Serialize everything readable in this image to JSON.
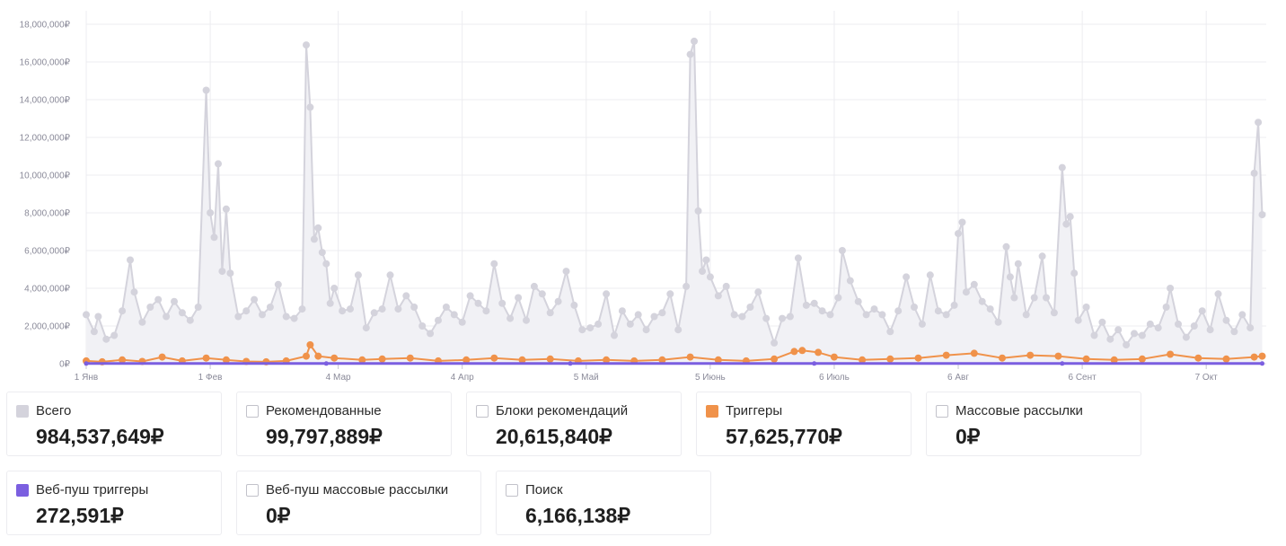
{
  "chart_data": {
    "type": "line",
    "currency": "₽",
    "ylim": [
      0,
      18000000
    ],
    "yticks": [
      0,
      2000000,
      4000000,
      6000000,
      8000000,
      10000000,
      12000000,
      14000000,
      16000000,
      18000000
    ],
    "ytick_labels": [
      "0₽",
      "2,000,000₽",
      "4,000,000₽",
      "6,000,000₽",
      "8,000,000₽",
      "10,000,000₽",
      "12,000,000₽",
      "14,000,000₽",
      "16,000,000₽",
      "18,000,000₽"
    ],
    "x_start": "2020-01-01",
    "x_end": "2020-10-22",
    "xticks": [
      {
        "date": "2020-01-01",
        "label": "1 Янв"
      },
      {
        "date": "2020-02-01",
        "label": "1 Фев"
      },
      {
        "date": "2020-03-04",
        "label": "4 Мар"
      },
      {
        "date": "2020-04-04",
        "label": "4 Апр"
      },
      {
        "date": "2020-05-05",
        "label": "5 Май"
      },
      {
        "date": "2020-06-05",
        "label": "5 Июнь"
      },
      {
        "date": "2020-07-06",
        "label": "6 Июль"
      },
      {
        "date": "2020-08-06",
        "label": "6 Авг"
      },
      {
        "date": "2020-09-06",
        "label": "6 Сент"
      },
      {
        "date": "2020-10-07",
        "label": "7 Окт"
      }
    ],
    "grid": true,
    "series": [
      {
        "name": "Всего",
        "color": "#d4d3dc",
        "fill": "#f1f1f5",
        "values_sampled": [
          [
            "2020-01-01",
            2600000
          ],
          [
            "2020-01-03",
            1700000
          ],
          [
            "2020-01-04",
            2500000
          ],
          [
            "2020-01-06",
            1300000
          ],
          [
            "2020-01-08",
            1500000
          ],
          [
            "2020-01-10",
            2800000
          ],
          [
            "2020-01-12",
            5500000
          ],
          [
            "2020-01-13",
            3800000
          ],
          [
            "2020-01-15",
            2200000
          ],
          [
            "2020-01-17",
            3000000
          ],
          [
            "2020-01-19",
            3400000
          ],
          [
            "2020-01-21",
            2500000
          ],
          [
            "2020-01-23",
            3300000
          ],
          [
            "2020-01-25",
            2700000
          ],
          [
            "2020-01-27",
            2300000
          ],
          [
            "2020-01-29",
            3000000
          ],
          [
            "2020-01-31",
            14500000
          ],
          [
            "2020-02-01",
            8000000
          ],
          [
            "2020-02-02",
            6700000
          ],
          [
            "2020-02-03",
            10600000
          ],
          [
            "2020-02-04",
            4900000
          ],
          [
            "2020-02-05",
            8200000
          ],
          [
            "2020-02-06",
            4800000
          ],
          [
            "2020-02-08",
            2500000
          ],
          [
            "2020-02-10",
            2800000
          ],
          [
            "2020-02-12",
            3400000
          ],
          [
            "2020-02-14",
            2600000
          ],
          [
            "2020-02-16",
            3000000
          ],
          [
            "2020-02-18",
            4200000
          ],
          [
            "2020-02-20",
            2500000
          ],
          [
            "2020-02-22",
            2400000
          ],
          [
            "2020-02-24",
            2900000
          ],
          [
            "2020-02-25",
            16900000
          ],
          [
            "2020-02-26",
            13600000
          ],
          [
            "2020-02-27",
            6600000
          ],
          [
            "2020-02-28",
            7200000
          ],
          [
            "2020-02-29",
            5900000
          ],
          [
            "2020-03-01",
            5300000
          ],
          [
            "2020-03-02",
            3200000
          ],
          [
            "2020-03-03",
            4000000
          ],
          [
            "2020-03-05",
            2800000
          ],
          [
            "2020-03-07",
            2900000
          ],
          [
            "2020-03-09",
            4700000
          ],
          [
            "2020-03-11",
            1900000
          ],
          [
            "2020-03-13",
            2700000
          ],
          [
            "2020-03-15",
            2900000
          ],
          [
            "2020-03-17",
            4700000
          ],
          [
            "2020-03-19",
            2900000
          ],
          [
            "2020-03-21",
            3600000
          ],
          [
            "2020-03-23",
            3000000
          ],
          [
            "2020-03-25",
            2000000
          ],
          [
            "2020-03-27",
            1600000
          ],
          [
            "2020-03-29",
            2300000
          ],
          [
            "2020-03-31",
            3000000
          ],
          [
            "2020-04-02",
            2600000
          ],
          [
            "2020-04-04",
            2200000
          ],
          [
            "2020-04-06",
            3600000
          ],
          [
            "2020-04-08",
            3200000
          ],
          [
            "2020-04-10",
            2800000
          ],
          [
            "2020-04-12",
            5300000
          ],
          [
            "2020-04-14",
            3200000
          ],
          [
            "2020-04-16",
            2400000
          ],
          [
            "2020-04-18",
            3500000
          ],
          [
            "2020-04-20",
            2300000
          ],
          [
            "2020-04-22",
            4100000
          ],
          [
            "2020-04-24",
            3700000
          ],
          [
            "2020-04-26",
            2700000
          ],
          [
            "2020-04-28",
            3300000
          ],
          [
            "2020-04-30",
            4900000
          ],
          [
            "2020-05-02",
            3100000
          ],
          [
            "2020-05-04",
            1800000
          ],
          [
            "2020-05-06",
            1900000
          ],
          [
            "2020-05-08",
            2100000
          ],
          [
            "2020-05-10",
            3700000
          ],
          [
            "2020-05-12",
            1500000
          ],
          [
            "2020-05-14",
            2800000
          ],
          [
            "2020-05-16",
            2100000
          ],
          [
            "2020-05-18",
            2600000
          ],
          [
            "2020-05-20",
            1800000
          ],
          [
            "2020-05-22",
            2500000
          ],
          [
            "2020-05-24",
            2700000
          ],
          [
            "2020-05-26",
            3700000
          ],
          [
            "2020-05-28",
            1800000
          ],
          [
            "2020-05-30",
            4100000
          ],
          [
            "2020-05-31",
            16400000
          ],
          [
            "2020-06-01",
            17100000
          ],
          [
            "2020-06-02",
            8100000
          ],
          [
            "2020-06-03",
            4900000
          ],
          [
            "2020-06-04",
            5500000
          ],
          [
            "2020-06-05",
            4600000
          ],
          [
            "2020-06-07",
            3600000
          ],
          [
            "2020-06-09",
            4100000
          ],
          [
            "2020-06-11",
            2600000
          ],
          [
            "2020-06-13",
            2500000
          ],
          [
            "2020-06-15",
            3000000
          ],
          [
            "2020-06-17",
            3800000
          ],
          [
            "2020-06-19",
            2400000
          ],
          [
            "2020-06-21",
            1100000
          ],
          [
            "2020-06-23",
            2400000
          ],
          [
            "2020-06-25",
            2500000
          ],
          [
            "2020-06-27",
            5600000
          ],
          [
            "2020-06-29",
            3100000
          ],
          [
            "2020-07-01",
            3200000
          ],
          [
            "2020-07-03",
            2800000
          ],
          [
            "2020-07-05",
            2600000
          ],
          [
            "2020-07-07",
            3500000
          ],
          [
            "2020-07-08",
            6000000
          ],
          [
            "2020-07-10",
            4400000
          ],
          [
            "2020-07-12",
            3300000
          ],
          [
            "2020-07-14",
            2600000
          ],
          [
            "2020-07-16",
            2900000
          ],
          [
            "2020-07-18",
            2600000
          ],
          [
            "2020-07-20",
            1700000
          ],
          [
            "2020-07-22",
            2800000
          ],
          [
            "2020-07-24",
            4600000
          ],
          [
            "2020-07-26",
            3000000
          ],
          [
            "2020-07-28",
            2100000
          ],
          [
            "2020-07-30",
            4700000
          ],
          [
            "2020-08-01",
            2800000
          ],
          [
            "2020-08-03",
            2600000
          ],
          [
            "2020-08-05",
            3100000
          ],
          [
            "2020-08-06",
            6900000
          ],
          [
            "2020-08-07",
            7500000
          ],
          [
            "2020-08-08",
            3800000
          ],
          [
            "2020-08-10",
            4200000
          ],
          [
            "2020-08-12",
            3300000
          ],
          [
            "2020-08-14",
            2900000
          ],
          [
            "2020-08-16",
            2200000
          ],
          [
            "2020-08-18",
            6200000
          ],
          [
            "2020-08-19",
            4600000
          ],
          [
            "2020-08-20",
            3500000
          ],
          [
            "2020-08-21",
            5300000
          ],
          [
            "2020-08-23",
            2600000
          ],
          [
            "2020-08-25",
            3500000
          ],
          [
            "2020-08-27",
            5700000
          ],
          [
            "2020-08-28",
            3500000
          ],
          [
            "2020-08-30",
            2700000
          ],
          [
            "2020-09-01",
            10400000
          ],
          [
            "2020-09-02",
            7400000
          ],
          [
            "2020-09-03",
            7800000
          ],
          [
            "2020-09-04",
            4800000
          ],
          [
            "2020-09-05",
            2300000
          ],
          [
            "2020-09-07",
            3000000
          ],
          [
            "2020-09-09",
            1500000
          ],
          [
            "2020-09-11",
            2200000
          ],
          [
            "2020-09-13",
            1300000
          ],
          [
            "2020-09-15",
            1800000
          ],
          [
            "2020-09-17",
            1000000
          ],
          [
            "2020-09-19",
            1600000
          ],
          [
            "2020-09-21",
            1500000
          ],
          [
            "2020-09-23",
            2100000
          ],
          [
            "2020-09-25",
            1900000
          ],
          [
            "2020-09-27",
            3000000
          ],
          [
            "2020-09-28",
            4000000
          ],
          [
            "2020-09-30",
            2100000
          ],
          [
            "2020-10-02",
            1400000
          ],
          [
            "2020-10-04",
            2000000
          ],
          [
            "2020-10-06",
            2800000
          ],
          [
            "2020-10-08",
            1800000
          ],
          [
            "2020-10-10",
            3700000
          ],
          [
            "2020-10-12",
            2300000
          ],
          [
            "2020-10-14",
            1700000
          ],
          [
            "2020-10-16",
            2600000
          ],
          [
            "2020-10-18",
            1900000
          ],
          [
            "2020-10-19",
            10100000
          ],
          [
            "2020-10-20",
            12800000
          ],
          [
            "2020-10-21",
            7900000
          ]
        ]
      },
      {
        "name": "Триггеры",
        "color": "#f0924a",
        "values_sampled": [
          [
            "2020-01-01",
            150000
          ],
          [
            "2020-01-05",
            100000
          ],
          [
            "2020-01-10",
            200000
          ],
          [
            "2020-01-15",
            120000
          ],
          [
            "2020-01-20",
            350000
          ],
          [
            "2020-01-25",
            150000
          ],
          [
            "2020-01-31",
            300000
          ],
          [
            "2020-02-05",
            200000
          ],
          [
            "2020-02-10",
            120000
          ],
          [
            "2020-02-15",
            100000
          ],
          [
            "2020-02-20",
            150000
          ],
          [
            "2020-02-25",
            400000
          ],
          [
            "2020-02-26",
            1000000
          ],
          [
            "2020-02-28",
            400000
          ],
          [
            "2020-03-03",
            300000
          ],
          [
            "2020-03-10",
            200000
          ],
          [
            "2020-03-15",
            250000
          ],
          [
            "2020-03-22",
            300000
          ],
          [
            "2020-03-29",
            150000
          ],
          [
            "2020-04-05",
            200000
          ],
          [
            "2020-04-12",
            300000
          ],
          [
            "2020-04-19",
            200000
          ],
          [
            "2020-04-26",
            250000
          ],
          [
            "2020-05-03",
            150000
          ],
          [
            "2020-05-10",
            200000
          ],
          [
            "2020-05-17",
            150000
          ],
          [
            "2020-05-24",
            200000
          ],
          [
            "2020-05-31",
            350000
          ],
          [
            "2020-06-07",
            200000
          ],
          [
            "2020-06-14",
            150000
          ],
          [
            "2020-06-21",
            250000
          ],
          [
            "2020-06-26",
            650000
          ],
          [
            "2020-06-28",
            700000
          ],
          [
            "2020-07-02",
            600000
          ],
          [
            "2020-07-06",
            350000
          ],
          [
            "2020-07-13",
            200000
          ],
          [
            "2020-07-20",
            250000
          ],
          [
            "2020-07-27",
            300000
          ],
          [
            "2020-08-03",
            450000
          ],
          [
            "2020-08-10",
            550000
          ],
          [
            "2020-08-17",
            300000
          ],
          [
            "2020-08-24",
            450000
          ],
          [
            "2020-08-31",
            400000
          ],
          [
            "2020-09-07",
            250000
          ],
          [
            "2020-09-14",
            200000
          ],
          [
            "2020-09-21",
            250000
          ],
          [
            "2020-09-28",
            500000
          ],
          [
            "2020-10-05",
            300000
          ],
          [
            "2020-10-12",
            250000
          ],
          [
            "2020-10-19",
            350000
          ],
          [
            "2020-10-21",
            400000
          ]
        ]
      },
      {
        "name": "Веб-пуш триггеры",
        "color": "#7b5fe0",
        "values_sampled": [
          [
            "2020-01-01",
            10000
          ],
          [
            "2020-03-01",
            10000
          ],
          [
            "2020-05-01",
            10000
          ],
          [
            "2020-07-01",
            10000
          ],
          [
            "2020-09-01",
            10000
          ],
          [
            "2020-10-21",
            10000
          ]
        ]
      }
    ]
  },
  "legend": {
    "cards": [
      {
        "label": "Всего",
        "value": "984,537,649₽",
        "checked": true,
        "color": "#d4d3dc"
      },
      {
        "label": "Рекомендованные",
        "value": "99,797,889₽",
        "checked": false,
        "color": ""
      },
      {
        "label": "Блоки рекомендаций",
        "value": "20,615,840₽",
        "checked": false,
        "color": ""
      },
      {
        "label": "Триггеры",
        "value": "57,625,770₽",
        "checked": true,
        "color": "#f0924a"
      },
      {
        "label": "Массовые рассылки",
        "value": "0₽",
        "checked": false,
        "color": ""
      },
      {
        "label": "Веб-пуш триггеры",
        "value": "272,591₽",
        "checked": true,
        "color": "#7b5fe0"
      },
      {
        "label": "Веб-пуш массовые рассылки",
        "value": "0₽",
        "checked": false,
        "color": ""
      },
      {
        "label": "Поиск",
        "value": "6,166,138₽",
        "checked": false,
        "color": ""
      }
    ]
  }
}
